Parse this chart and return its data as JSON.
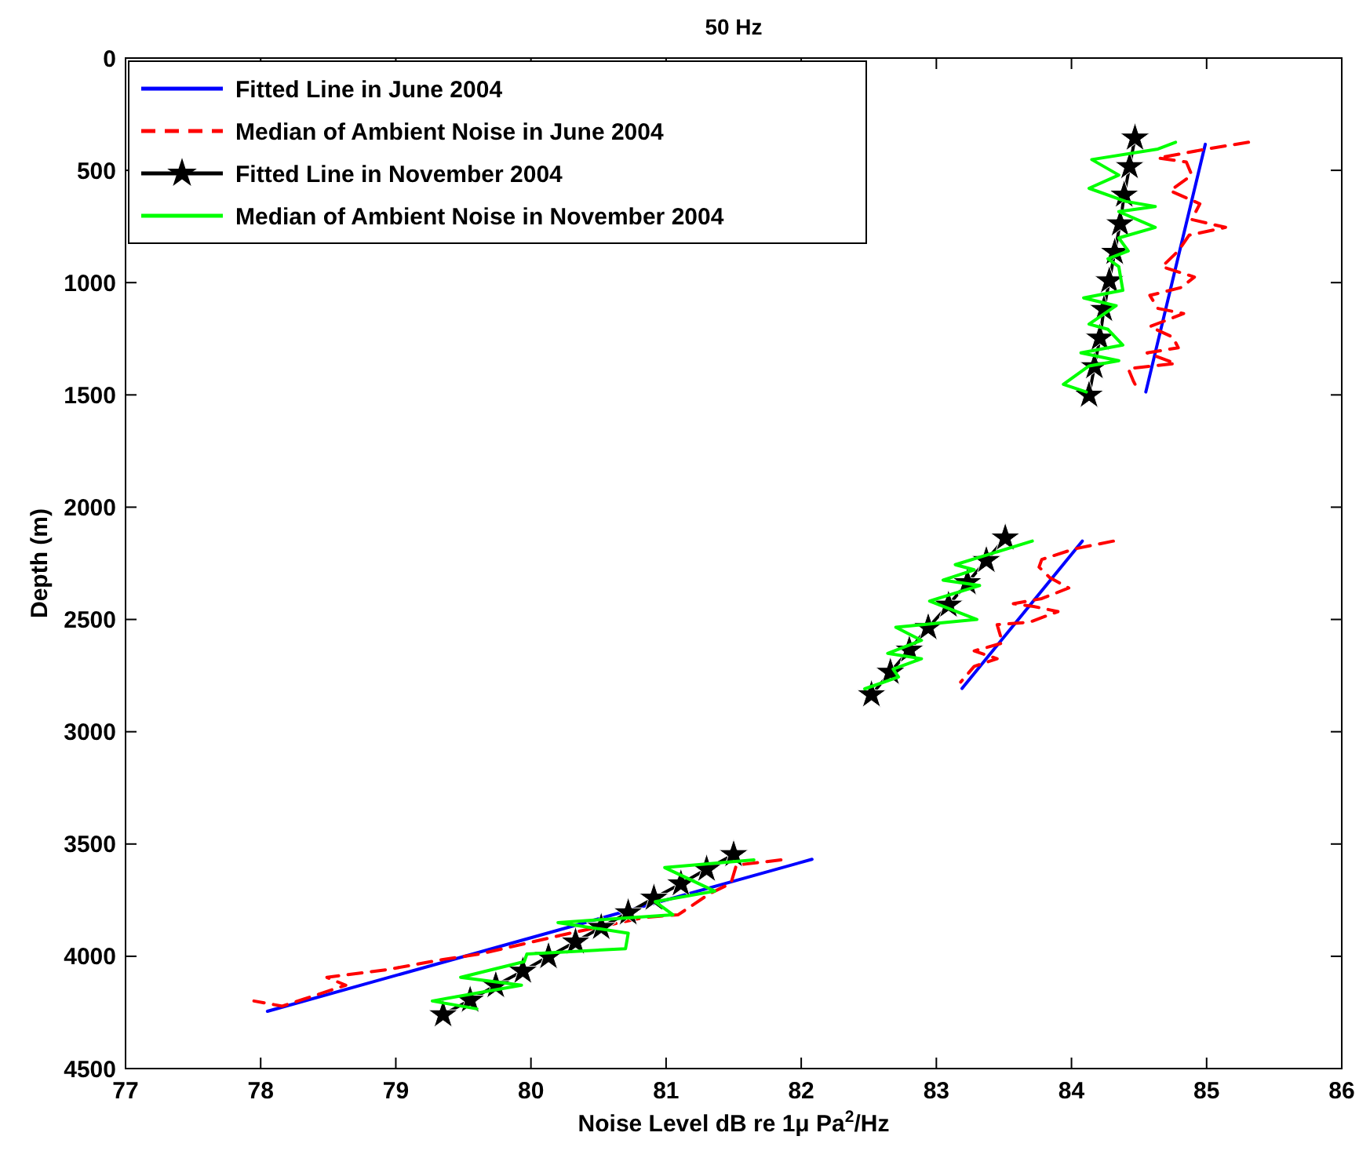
{
  "chart_data": {
    "type": "line",
    "title": "50 Hz",
    "xlabel": "Noise Level dB re 1μ Pa$^{2}$/Hz",
    "ylabel": "Depth (m)",
    "xlim": [
      77,
      86
    ],
    "xticks": [
      77,
      78,
      79,
      80,
      81,
      82,
      83,
      84,
      85,
      86
    ],
    "ylim": [
      4500,
      0
    ],
    "yticks": [
      0,
      500,
      1000,
      1500,
      2000,
      2500,
      3000,
      3500,
      4000,
      4500
    ],
    "grid": false,
    "legend": "top left",
    "series": [
      {
        "name": "Fitted Line in June 2004",
        "color": "#0000ff",
        "line_style": "solid",
        "marker": "none",
        "x": [
          84.99,
          84.55,
          null,
          84.08,
          83.19,
          null,
          78.05,
          82.08
        ],
        "values": [
          384,
          1487,
          null,
          2151,
          2807,
          null,
          4245,
          3568
        ]
      },
      {
        "name": "Median of Ambient Noise in June 2004",
        "color": "#ff0000",
        "line_style": "dashed",
        "marker": "none",
        "x": [
          85.31,
          85.0,
          84.64,
          84.85,
          84.89,
          84.73,
          84.95,
          84.89,
          85.14,
          84.87,
          84.79,
          84.67,
          84.91,
          84.81,
          84.58,
          84.64,
          84.83,
          84.58,
          84.75,
          84.79,
          84.56,
          84.77,
          84.42,
          84.46,
          84.5,
          null,
          84.31,
          84.02,
          83.78,
          83.76,
          83.84,
          83.98,
          83.78,
          83.57,
          83.72,
          83.9,
          83.69,
          83.45,
          83.49,
          83.28,
          83.45,
          83.28,
          83.18,
          null,
          81.85,
          81.52,
          81.48,
          81.32,
          81.09,
          80.84,
          80.29,
          79.62,
          79.36,
          78.94,
          78.49,
          78.63,
          78.16,
          77.95
        ],
        "values": [
          375,
          405,
          445,
          463,
          521,
          591,
          649,
          719,
          754,
          789,
          859,
          929,
          975,
          1022,
          1057,
          1115,
          1138,
          1196,
          1243,
          1290,
          1313,
          1360,
          1383,
          1441,
          1487,
          null,
          2151,
          2186,
          2233,
          2267,
          2314,
          2360,
          2407,
          2430,
          2442,
          2465,
          2512,
          2523,
          2605,
          2640,
          2675,
          2709,
          2779,
          null,
          3571,
          3594,
          3675,
          3722,
          3815,
          3827,
          3897,
          3990,
          4013,
          4059,
          4094,
          4129,
          4222,
          4199
        ]
      },
      {
        "name": "Fitted Line in November 2004",
        "color": "#000000",
        "line_style": "solid",
        "marker": "star",
        "x": [
          84.47,
          84.43,
          84.39,
          84.36,
          84.32,
          84.28,
          84.24,
          84.21,
          84.17,
          84.13,
          null,
          83.51,
          83.37,
          83.23,
          83.09,
          82.94,
          82.8,
          82.66,
          82.52,
          null,
          81.5,
          81.3,
          81.11,
          80.91,
          80.72,
          80.52,
          80.33,
          80.13,
          79.94,
          79.74,
          79.55,
          79.35
        ],
        "values": [
          356,
          483,
          610,
          738,
          865,
          992,
          1119,
          1247,
          1374,
          1501,
          null,
          2137,
          2237,
          2336,
          2436,
          2536,
          2636,
          2735,
          2835,
          null,
          3547,
          3612,
          3677,
          3741,
          3806,
          3871,
          3936,
          4001,
          4066,
          4130,
          4195,
          4260
        ]
      },
      {
        "name": "Median of Ambient Noise in November 2004",
        "color": "#00ff00",
        "line_style": "solid",
        "marker": "none",
        "x": [
          84.77,
          84.64,
          84.15,
          84.35,
          84.13,
          84.4,
          84.62,
          84.35,
          84.62,
          84.35,
          84.42,
          84.27,
          84.35,
          84.38,
          84.09,
          84.33,
          84.13,
          84.27,
          84.38,
          84.07,
          84.35,
          84.13,
          83.94,
          84.11,
          null,
          83.71,
          83.14,
          83.28,
          83.05,
          83.32,
          82.95,
          83.3,
          82.7,
          82.89,
          82.64,
          82.89,
          82.68,
          82.72,
          82.47,
          null,
          81.65,
          80.99,
          81.36,
          80.92,
          81.05,
          80.2,
          80.72,
          80.7,
          79.97,
          79.95,
          79.48,
          79.93,
          79.27,
          79.6
        ],
        "values": [
          375,
          405,
          452,
          521,
          580,
          638,
          661,
          684,
          754,
          801,
          859,
          894,
          929,
          1034,
          1068,
          1103,
          1185,
          1208,
          1278,
          1313,
          1348,
          1371,
          1453,
          1487,
          null,
          2151,
          2256,
          2279,
          2325,
          2349,
          2418,
          2500,
          2535,
          2593,
          2651,
          2675,
          2721,
          2756,
          2809,
          null,
          3571,
          3605,
          3710,
          3757,
          3815,
          3850,
          3897,
          3966,
          3990,
          4024,
          4094,
          4129,
          4199,
          4234
        ]
      }
    ]
  }
}
